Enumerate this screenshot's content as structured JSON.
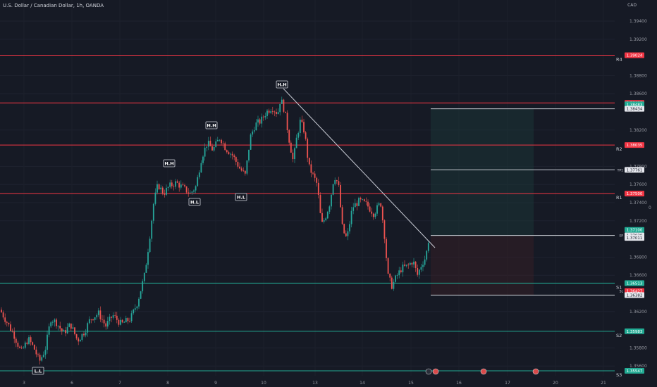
{
  "header": {
    "symbol_title": "U.S. Dollar / Canadian Dollar, 1h, OANDA",
    "currency": "CAD"
  },
  "colors": {
    "background": "#161a25",
    "up": "#26a69a",
    "down": "#ef5350",
    "resistance": "#f23645",
    "support": "#22ab94",
    "trendline": "#c8cbd4"
  },
  "chart_data": {
    "type": "candlestick",
    "x_tick_labels": [
      "3",
      "6",
      "7",
      "8",
      "9",
      "10",
      "13",
      "14",
      "15",
      "16",
      "17",
      "20",
      "21"
    ],
    "y_range": [
      1.3542,
      1.3954
    ],
    "y_tick_labels": [
      "1.39400",
      "1.39200",
      "1.38800",
      "1.38600",
      "1.38200",
      "1.37800",
      "1.37600",
      "1.37400",
      "1.37200",
      "1.36800",
      "1.36600",
      "1.36200",
      "1.35800",
      "1.35600"
    ],
    "key_levels": [
      {
        "name": "R4",
        "value": "1.39024",
        "kind": "resistance"
      },
      {
        "name": "R2",
        "value": "1.38035",
        "kind": "resistance"
      },
      {
        "name": "R1",
        "value": "1.37500",
        "kind": "resistance"
      },
      {
        "name": "S1",
        "value": "1.36513",
        "kind": "support"
      },
      {
        "name": "S2",
        "value": "1.35983",
        "kind": "support"
      },
      {
        "name": "S3",
        "value": "1.35547",
        "kind": "support"
      }
    ],
    "price_tags": [
      {
        "value": "1.38499",
        "kind": "resistance",
        "level_label": ""
      },
      {
        "value": "1.38483",
        "kind": "support",
        "level_label": ""
      },
      {
        "value": "1.38434",
        "kind": "plain",
        "level_label": ""
      },
      {
        "value": "1.37761",
        "kind": "plain",
        "level_label": "TP1"
      },
      {
        "value": "1.37100",
        "kind": "support",
        "level_label": "",
        "extra": "14:12"
      },
      {
        "value": "1.37039",
        "kind": "plain",
        "level_label": "EP"
      },
      {
        "value": "1.37011",
        "kind": "plain",
        "level_label": ""
      },
      {
        "value": "1.36427",
        "kind": "resistance",
        "level_label": "SL"
      },
      {
        "value": "1.36382",
        "kind": "plain",
        "level_label": ""
      }
    ],
    "swing_labels": [
      {
        "text": "H.H",
        "date": "8"
      },
      {
        "text": "H.H",
        "date": "9"
      },
      {
        "text": "H.H",
        "date": "10"
      },
      {
        "text": "H.L",
        "date": "8"
      },
      {
        "text": "H.L",
        "date": "9"
      },
      {
        "text": "L.L",
        "date": "3"
      }
    ],
    "price_range_marker": "0",
    "trendline": {
      "from_price": 1.386,
      "to_price": 1.3699
    },
    "position": {
      "entry": 1.37039,
      "take_profit": 1.38434,
      "stop_loss": 1.36382
    }
  }
}
